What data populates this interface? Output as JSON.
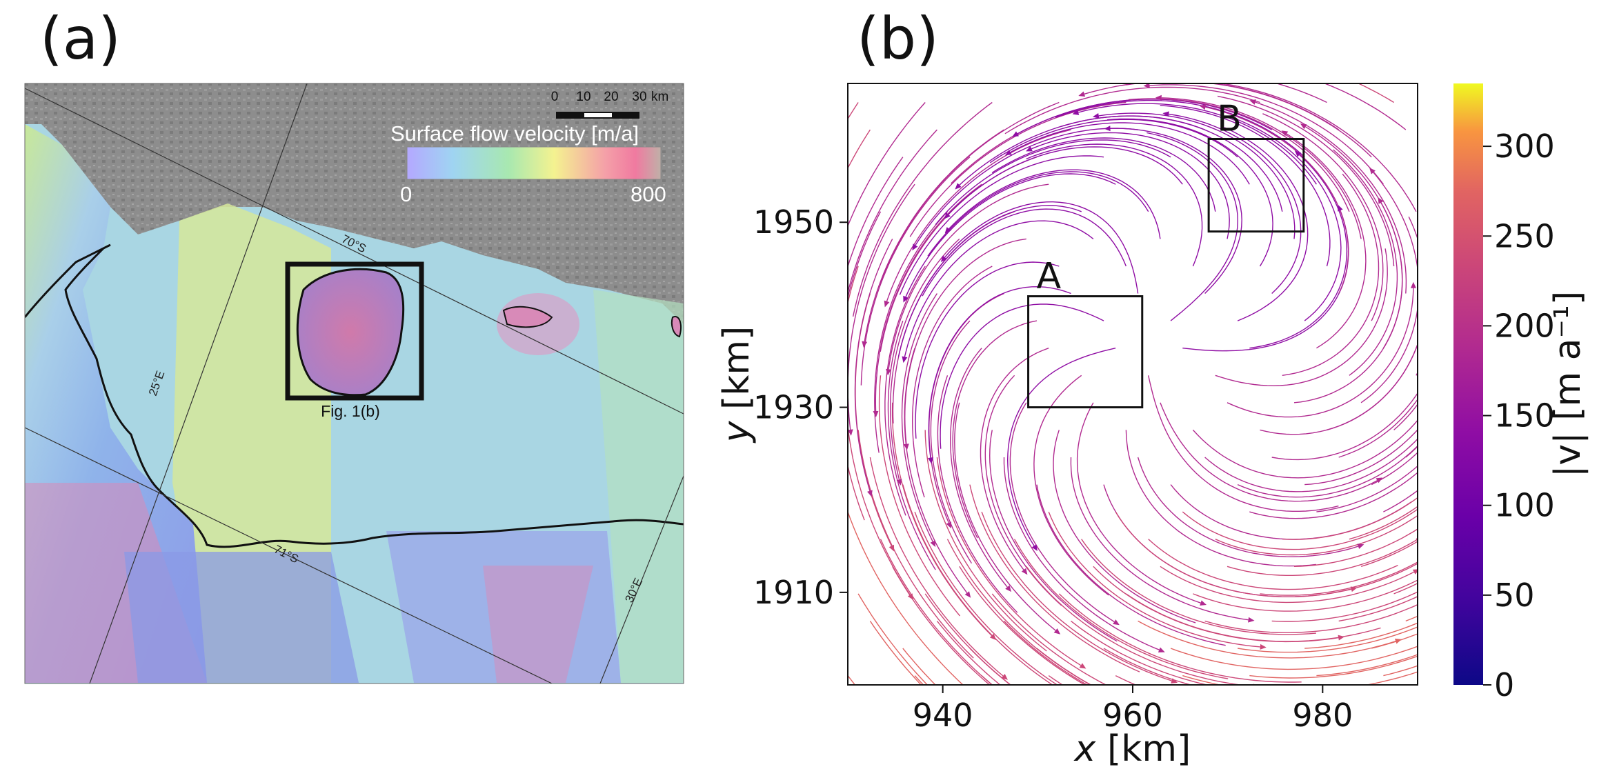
{
  "panel_a": {
    "label": "(a)",
    "scalebar": {
      "ticks": [
        "0",
        "10",
        "20",
        "30"
      ],
      "unit": "km"
    },
    "colorbar": {
      "title": "Surface flow velocity [m/a]",
      "min_label": "0",
      "max_label": "800",
      "gradient": [
        "#a8a8ff",
        "#9fd4f2",
        "#a8e8b0",
        "#f4f290",
        "#f4a0a8",
        "#f07aa0",
        "#c8b4a8"
      ]
    },
    "inset_caption": "Fig. 1(b)",
    "graticule": {
      "lat1": "70°S",
      "lat2": "71°S",
      "lon1": "25°E",
      "lon2": "30°E"
    }
  },
  "panel_b": {
    "label": "(b)",
    "box_a_label": "A",
    "box_b_label": "B",
    "chart_data": {
      "type": "streamplot",
      "xlabel_italic": "x",
      "xlabel_unit": " [km]",
      "ylabel_italic": "y",
      "ylabel_unit": " [km]",
      "xlim": [
        930,
        990
      ],
      "ylim": [
        1900,
        1965
      ],
      "xticks": [
        940,
        960,
        980
      ],
      "yticks": [
        1910,
        1930,
        1950
      ],
      "colorbar": {
        "label": "|v| [m a⁻¹]",
        "ticks": [
          0,
          50,
          100,
          150,
          200,
          250,
          300
        ],
        "range": [
          0,
          335
        ],
        "colormap": "plasma"
      },
      "boxes": [
        {
          "name": "A",
          "x": [
            949,
            961
          ],
          "y": [
            1930,
            1942
          ]
        },
        {
          "name": "B",
          "x": [
            968,
            978
          ],
          "y": [
            1949,
            1959
          ]
        }
      ]
    }
  }
}
